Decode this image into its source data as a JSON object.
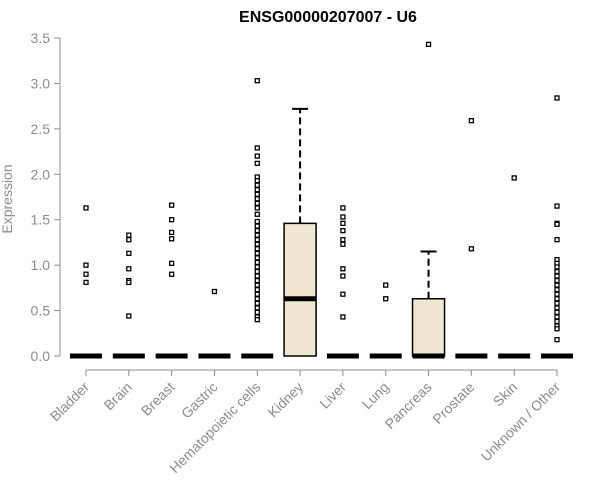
{
  "chart_data": {
    "type": "box",
    "title": "ENSG00000207007 - U6",
    "xlabel": "",
    "ylabel": "Expression",
    "ylim": [
      0,
      3.5
    ],
    "yticks": [
      "0.0",
      "0.5",
      "1.0",
      "1.5",
      "2.0",
      "2.5",
      "3.0",
      "3.5"
    ],
    "box_color": "#efe8cf",
    "categories": [
      "Bladder",
      "Brain",
      "Breast",
      "Gastric",
      "Hematopoietic cells",
      "Kidney",
      "Liver",
      "Lung",
      "Pancreas",
      "Prostate",
      "Skin",
      "Unknown / Other"
    ],
    "boxes": [
      {
        "category": "Bladder",
        "q1": 0,
        "median": 0,
        "q3": 0,
        "whisker_low": 0,
        "whisker_high": 0,
        "outliers": [
          1.63,
          1.0,
          0.9,
          0.81
        ]
      },
      {
        "category": "Brain",
        "q1": 0,
        "median": 0,
        "q3": 0,
        "whisker_low": 0,
        "whisker_high": 0,
        "outliers": [
          1.33,
          1.28,
          1.13,
          0.96,
          0.83,
          0.81,
          0.44
        ]
      },
      {
        "category": "Breast",
        "q1": 0,
        "median": 0,
        "q3": 0,
        "whisker_low": 0,
        "whisker_high": 0,
        "outliers": [
          1.66,
          1.5,
          1.36,
          1.29,
          1.02,
          0.9
        ]
      },
      {
        "category": "Gastric",
        "q1": 0,
        "median": 0,
        "q3": 0,
        "whisker_low": 0,
        "whisker_high": 0,
        "outliers": [
          0.71
        ]
      },
      {
        "category": "Hematopoietic cells",
        "q1": 0,
        "median": 0,
        "q3": 0,
        "whisker_low": 0,
        "whisker_high": 0,
        "outliers": [
          3.03,
          2.29,
          2.2,
          2.12,
          1.97,
          1.93,
          1.88,
          1.83,
          1.78,
          1.73,
          1.68,
          1.63,
          1.56,
          1.48,
          1.43,
          1.38,
          1.33,
          1.28,
          1.23,
          1.18,
          1.13,
          1.08,
          1.03,
          0.98,
          0.93,
          0.88,
          0.83,
          0.78,
          0.73,
          0.68,
          0.63,
          0.58,
          0.53,
          0.48,
          0.43,
          0.4
        ]
      },
      {
        "category": "Kidney",
        "q1": 0,
        "median": 0.63,
        "q3": 1.46,
        "whisker_low": 0,
        "whisker_high": 2.72,
        "outliers": []
      },
      {
        "category": "Liver",
        "q1": 0,
        "median": 0,
        "q3": 0,
        "whisker_low": 0,
        "whisker_high": 0,
        "outliers": [
          1.63,
          1.53,
          1.46,
          1.38,
          1.28,
          1.23,
          0.96,
          0.88,
          0.68,
          0.43
        ]
      },
      {
        "category": "Lung",
        "q1": 0,
        "median": 0,
        "q3": 0,
        "whisker_low": 0,
        "whisker_high": 0,
        "outliers": [
          0.78,
          0.63
        ]
      },
      {
        "category": "Pancreas",
        "q1": 0,
        "median": 0,
        "q3": 0.63,
        "whisker_low": 0,
        "whisker_high": 1.15,
        "outliers": [
          3.43
        ]
      },
      {
        "category": "Prostate",
        "q1": 0,
        "median": 0,
        "q3": 0,
        "whisker_low": 0,
        "whisker_high": 0,
        "outliers": [
          2.59,
          1.18
        ]
      },
      {
        "category": "Skin",
        "q1": 0,
        "median": 0,
        "q3": 0,
        "whisker_low": 0,
        "whisker_high": 0,
        "outliers": [
          1.96
        ]
      },
      {
        "category": "Unknown / Other",
        "q1": 0,
        "median": 0,
        "q3": 0,
        "whisker_low": 0,
        "whisker_high": 0,
        "outliers": [
          2.84,
          1.65,
          1.46,
          1.45,
          1.28,
          1.06,
          1.02,
          0.98,
          0.93,
          0.88,
          0.83,
          0.78,
          0.73,
          0.68,
          0.63,
          0.58,
          0.53,
          0.48,
          0.43,
          0.38,
          0.33,
          0.3,
          0.18
        ]
      }
    ]
  }
}
